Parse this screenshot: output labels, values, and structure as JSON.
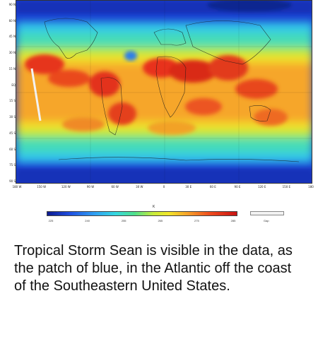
{
  "map": {
    "lat_labels": [
      "90 N",
      "60 N",
      "45 N",
      "30 N",
      "15 N",
      "EQ",
      "15 S",
      "30 S",
      "45 S",
      "60 S",
      "75 S",
      "90 S"
    ],
    "lon_labels": [
      "180 W",
      "150 W",
      "120 W",
      "90 W",
      "60 W",
      "30 W",
      "0",
      "30 E",
      "60 E",
      "90 E",
      "120 E",
      "150 E",
      "180"
    ],
    "colors": {
      "ocean_cold": "#1a3fd0",
      "mid": "#35d8e0",
      "warm": "#f2e62a",
      "hot": "#e8321a"
    }
  },
  "legend": {
    "unit": "K",
    "ticks": [
      "225",
      "240",
      "255",
      "265",
      "275",
      "285"
    ],
    "gap_label": "Gap"
  },
  "caption": "Tropical Storm Sean is visible in the data, as the patch of blue, in the Atlantic off the coast of the Southeastern United States."
}
